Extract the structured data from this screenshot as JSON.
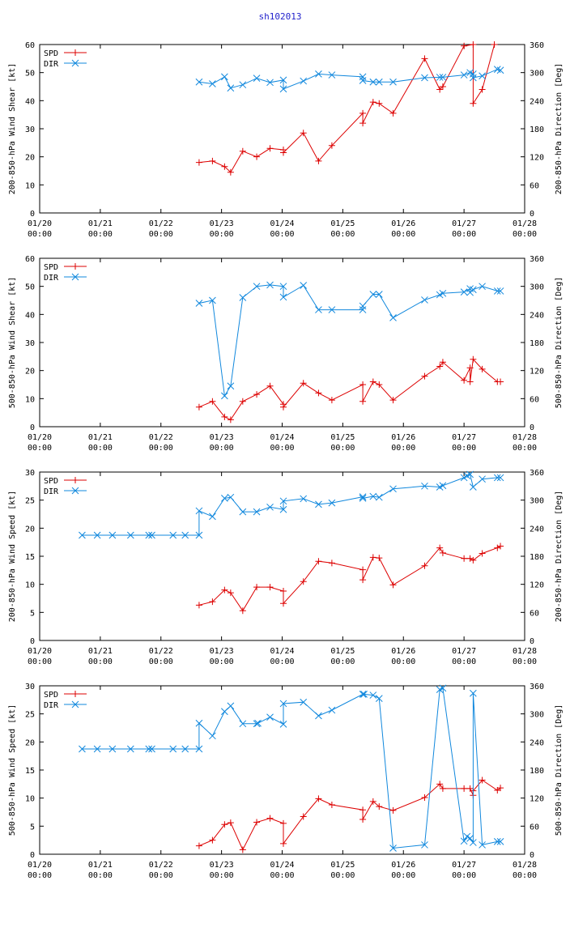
{
  "page": {
    "title": "sh102013",
    "title_color": "#2222cc"
  },
  "colors": {
    "spd": "#dd0000",
    "dir": "#1188dd",
    "axis": "#000000"
  },
  "chart_data": [
    {
      "type": "line",
      "title": "sh102013",
      "ylabel": "200-850-hPa Wind Shear [kt]",
      "y2label": "200-850-hPa Direction [Deg]",
      "ylim": [
        0,
        60
      ],
      "yticks": [
        0,
        10,
        20,
        30,
        40,
        50,
        60
      ],
      "y2lim": [
        0,
        360
      ],
      "y2ticks": [
        0,
        60,
        120,
        180,
        240,
        300,
        360
      ],
      "xlim": [
        0,
        8
      ],
      "xticks": [
        {
          "v": 0,
          "l1": "01/20",
          "l2": "00:00"
        },
        {
          "v": 1,
          "l1": "01/21",
          "l2": "00:00"
        },
        {
          "v": 2,
          "l1": "01/22",
          "l2": "00:00"
        },
        {
          "v": 3,
          "l1": "01/23",
          "l2": "00:00"
        },
        {
          "v": 4,
          "l1": "01/24",
          "l2": "00:00"
        },
        {
          "v": 5,
          "l1": "01/25",
          "l2": "00:00"
        },
        {
          "v": 6,
          "l1": "01/26",
          "l2": "00:00"
        },
        {
          "v": 7,
          "l1": "01/27",
          "l2": "00:00"
        },
        {
          "v": 8,
          "l1": "01/28",
          "l2": "00:00"
        }
      ],
      "legend": [
        "SPD",
        "DIR"
      ],
      "series": [
        {
          "name": "SPD",
          "axis": "left",
          "x": [
            2.63,
            2.85,
            3.05,
            3.15,
            3.35,
            3.58,
            3.8,
            4.02,
            4.02,
            4.35,
            4.6,
            4.82,
            5.33,
            5.33,
            5.5,
            5.6,
            5.83,
            6.35,
            6.6,
            6.65,
            7.0,
            7.15,
            7.15,
            7.3,
            7.5
          ],
          "y": [
            18,
            18.5,
            16.5,
            14.5,
            22,
            20,
            23,
            22.5,
            21.5,
            28.5,
            18.5,
            24,
            35.5,
            32,
            39.5,
            39,
            35.5,
            55,
            44,
            45,
            59.5,
            60,
            39,
            44,
            60
          ]
        },
        {
          "name": "DIR",
          "axis": "right",
          "x": [
            2.63,
            2.85,
            3.05,
            3.15,
            3.35,
            3.58,
            3.8,
            4.02,
            4.02,
            4.35,
            4.6,
            4.82,
            5.33,
            5.33,
            5.5,
            5.6,
            5.83,
            6.35,
            6.6,
            6.65,
            7.0,
            7.1,
            7.15,
            7.15,
            7.3,
            7.55,
            7.6
          ],
          "y": [
            280,
            276,
            291,
            267,
            274,
            288,
            279,
            284,
            265,
            282,
            297,
            295,
            291,
            283,
            280,
            280,
            280,
            289,
            290,
            290,
            295,
            300,
            297,
            289,
            293,
            307,
            305
          ]
        }
      ]
    },
    {
      "type": "line",
      "title": "",
      "ylabel": "500-850-hPa Wind Shear [kt]",
      "y2label": "500-850-hPa Direction [Deg]",
      "ylim": [
        0,
        60
      ],
      "yticks": [
        0,
        10,
        20,
        30,
        40,
        50,
        60
      ],
      "y2lim": [
        0,
        360
      ],
      "y2ticks": [
        0,
        60,
        120,
        180,
        240,
        300,
        360
      ],
      "xlim": [
        0,
        8
      ],
      "xticks": [
        {
          "v": 0,
          "l1": "01/20",
          "l2": "00:00"
        },
        {
          "v": 1,
          "l1": "01/21",
          "l2": "00:00"
        },
        {
          "v": 2,
          "l1": "01/22",
          "l2": "00:00"
        },
        {
          "v": 3,
          "l1": "01/23",
          "l2": "00:00"
        },
        {
          "v": 4,
          "l1": "01/24",
          "l2": "00:00"
        },
        {
          "v": 5,
          "l1": "01/25",
          "l2": "00:00"
        },
        {
          "v": 6,
          "l1": "01/26",
          "l2": "00:00"
        },
        {
          "v": 7,
          "l1": "01/27",
          "l2": "00:00"
        },
        {
          "v": 8,
          "l1": "01/28",
          "l2": "00:00"
        }
      ],
      "legend": [
        "SPD",
        "DIR"
      ],
      "series": [
        {
          "name": "SPD",
          "axis": "left",
          "x": [
            2.63,
            2.85,
            3.05,
            3.15,
            3.35,
            3.58,
            3.8,
            4.02,
            4.02,
            4.35,
            4.6,
            4.82,
            5.33,
            5.33,
            5.5,
            5.6,
            5.83,
            6.35,
            6.6,
            6.65,
            7.0,
            7.1,
            7.1,
            7.15,
            7.3,
            7.55,
            7.6
          ],
          "y": [
            7,
            9,
            3.5,
            2.5,
            9,
            11.5,
            14.5,
            8,
            7,
            15.5,
            12,
            9.5,
            15,
            9,
            16,
            15,
            9.5,
            18,
            21.5,
            23,
            16.5,
            21,
            16,
            24,
            20.5,
            16,
            16
          ]
        },
        {
          "name": "DIR",
          "axis": "right",
          "x": [
            2.63,
            2.85,
            3.05,
            3.15,
            3.35,
            3.58,
            3.8,
            4.02,
            4.02,
            4.35,
            4.6,
            4.82,
            5.33,
            5.33,
            5.5,
            5.6,
            5.83,
            6.35,
            6.6,
            6.65,
            7.0,
            7.1,
            7.1,
            7.15,
            7.3,
            7.55,
            7.6
          ],
          "y": [
            264,
            270,
            66,
            87,
            276,
            300,
            303,
            300,
            277,
            302,
            250,
            250,
            250,
            258,
            283,
            283,
            233,
            271,
            282,
            285,
            288,
            295,
            287,
            293,
            300,
            290,
            290
          ]
        }
      ]
    },
    {
      "type": "line",
      "title": "",
      "ylabel": "200-850-hPa Wind Speed [kt]",
      "y2label": "200-850-hPa Direction [Deg]",
      "ylim": [
        0,
        30
      ],
      "yticks": [
        0,
        5,
        10,
        15,
        20,
        25,
        30
      ],
      "y2lim": [
        0,
        360
      ],
      "y2ticks": [
        0,
        60,
        120,
        180,
        240,
        300,
        360
      ],
      "xlim": [
        0,
        8
      ],
      "xticks": [
        {
          "v": 0,
          "l1": "01/20",
          "l2": "00:00"
        },
        {
          "v": 1,
          "l1": "01/21",
          "l2": "00:00"
        },
        {
          "v": 2,
          "l1": "01/22",
          "l2": "00:00"
        },
        {
          "v": 3,
          "l1": "01/23",
          "l2": "00:00"
        },
        {
          "v": 4,
          "l1": "01/24",
          "l2": "00:00"
        },
        {
          "v": 5,
          "l1": "01/25",
          "l2": "00:00"
        },
        {
          "v": 6,
          "l1": "01/26",
          "l2": "00:00"
        },
        {
          "v": 7,
          "l1": "01/27",
          "l2": "00:00"
        },
        {
          "v": 8,
          "l1": "01/28",
          "l2": "00:00"
        }
      ],
      "legend": [
        "SPD",
        "DIR"
      ],
      "series": [
        {
          "name": "SPD",
          "axis": "left",
          "x": [
            2.63,
            2.85,
            3.05,
            3.15,
            3.35,
            3.58,
            3.8,
            4.02,
            4.02,
            4.35,
            4.6,
            4.82,
            5.33,
            5.33,
            5.5,
            5.6,
            5.83,
            6.35,
            6.6,
            6.65,
            7.0,
            7.1,
            7.15,
            7.3,
            7.55,
            7.6
          ],
          "y": [
            6.3,
            6.9,
            9,
            8.5,
            5.3,
            9.5,
            9.5,
            8.8,
            6.6,
            10.5,
            14.1,
            13.8,
            12.6,
            10.8,
            14.8,
            14.7,
            9.9,
            13.3,
            16.5,
            15.6,
            14.6,
            14.6,
            14.3,
            15.5,
            16.5,
            16.8
          ]
        },
        {
          "name": "DIR",
          "axis": "right",
          "x": [
            0.7,
            0.95,
            1.2,
            1.5,
            1.8,
            1.85,
            2.2,
            2.4,
            2.63,
            2.63,
            2.85,
            3.05,
            3.15,
            3.35,
            3.58,
            3.8,
            4.02,
            4.02,
            4.35,
            4.6,
            4.82,
            5.33,
            5.33,
            5.5,
            5.6,
            5.83,
            6.35,
            6.6,
            6.65,
            7.0,
            7.05,
            7.1,
            7.15,
            7.3,
            7.55,
            7.6
          ],
          "y": [
            225,
            225,
            225,
            225,
            225,
            225,
            225,
            225,
            225,
            277,
            265,
            304,
            306,
            275,
            275,
            285,
            280,
            298,
            303,
            291,
            294,
            307,
            304,
            308,
            306,
            324,
            330,
            328,
            331,
            348,
            352,
            355,
            328,
            345,
            348,
            348
          ]
        }
      ]
    },
    {
      "type": "line",
      "title": "",
      "ylabel": "500-850-hPa Wind Speed [kt]",
      "y2label": "500-850-hPa Direction [Deg]",
      "ylim": [
        0,
        30
      ],
      "yticks": [
        0,
        5,
        10,
        15,
        20,
        25,
        30
      ],
      "y2lim": [
        0,
        360
      ],
      "y2ticks": [
        0,
        60,
        120,
        180,
        240,
        300,
        360
      ],
      "xlim": [
        0,
        8
      ],
      "xticks": [
        {
          "v": 0,
          "l1": "01/20",
          "l2": "00:00"
        },
        {
          "v": 1,
          "l1": "01/21",
          "l2": "00:00"
        },
        {
          "v": 2,
          "l1": "01/22",
          "l2": "00:00"
        },
        {
          "v": 3,
          "l1": "01/23",
          "l2": "00:00"
        },
        {
          "v": 4,
          "l1": "01/24",
          "l2": "00:00"
        },
        {
          "v": 5,
          "l1": "01/25",
          "l2": "00:00"
        },
        {
          "v": 6,
          "l1": "01/26",
          "l2": "00:00"
        },
        {
          "v": 7,
          "l1": "01/27",
          "l2": "00:00"
        },
        {
          "v": 8,
          "l1": "01/28",
          "l2": "00:00"
        }
      ],
      "legend": [
        "SPD",
        "DIR"
      ],
      "series": [
        {
          "name": "SPD",
          "axis": "left",
          "x": [
            2.63,
            2.85,
            3.05,
            3.15,
            3.35,
            3.58,
            3.8,
            4.02,
            4.02,
            4.35,
            4.6,
            4.82,
            5.33,
            5.33,
            5.5,
            5.6,
            5.83,
            6.35,
            6.6,
            6.65,
            7.0,
            7.1,
            7.15,
            7.15,
            7.3,
            7.55,
            7.6
          ],
          "y": [
            1.5,
            2.5,
            5.3,
            5.6,
            0.8,
            5.7,
            6.4,
            5.5,
            1.9,
            6.7,
            9.9,
            8.8,
            7.9,
            6.2,
            9.4,
            8.5,
            7.8,
            10.1,
            12.5,
            11.7,
            11.7,
            11.7,
            10.5,
            11.3,
            13.2,
            11.4,
            11.8
          ]
        },
        {
          "name": "DIR",
          "axis": "right",
          "x": [
            0.7,
            0.95,
            1.2,
            1.5,
            1.8,
            1.85,
            2.2,
            2.4,
            2.63,
            2.63,
            2.85,
            3.05,
            3.15,
            3.35,
            3.58,
            3.6,
            3.8,
            4.02,
            4.02,
            4.35,
            4.6,
            4.82,
            5.33,
            5.35,
            5.5,
            5.6,
            5.83,
            6.35,
            6.6,
            6.65,
            7.0,
            7.05,
            7.1,
            7.15,
            7.15,
            7.3,
            7.55,
            7.6
          ],
          "y": [
            225,
            225,
            225,
            225,
            225,
            225,
            225,
            225,
            225,
            280,
            253,
            305,
            317,
            279,
            279,
            280,
            293,
            278,
            322,
            325,
            296,
            308,
            342,
            342,
            340,
            333,
            13,
            20,
            352,
            355,
            28,
            38,
            34,
            25,
            344,
            20,
            27,
            27
          ]
        }
      ]
    }
  ]
}
